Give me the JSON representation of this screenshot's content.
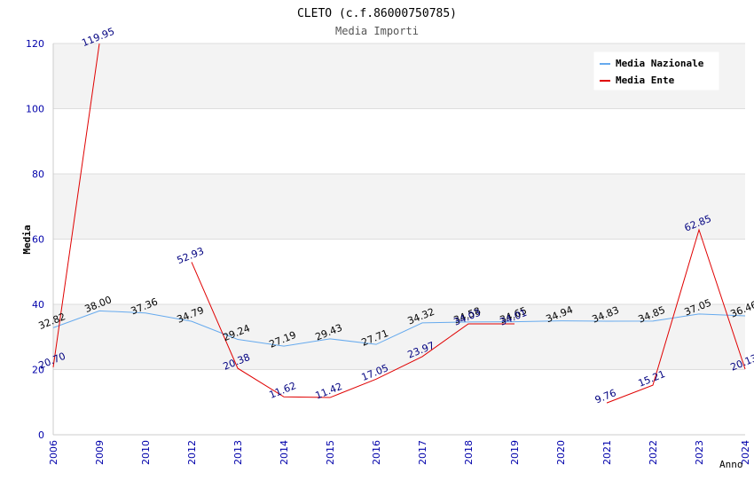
{
  "chart_data": {
    "type": "line",
    "title": "CLETO (c.f.86000750785)",
    "subtitle": "Media Importi",
    "xlabel": "Anno",
    "ylabel": "Media",
    "ylim": [
      0,
      120
    ],
    "yticks": [
      0,
      20,
      40,
      60,
      80,
      100,
      120
    ],
    "grid": true,
    "legend_position": "top-right",
    "categories": [
      "2006",
      "2009",
      "2010",
      "2012",
      "2013",
      "2014",
      "2015",
      "2016",
      "2017",
      "2018",
      "2019",
      "2020",
      "2021",
      "2022",
      "2023",
      "2024"
    ],
    "series": [
      {
        "name": "Media Nazionale",
        "color": "#66aaee",
        "label_color": "#000000",
        "values": [
          32.82,
          38.0,
          37.36,
          34.79,
          29.24,
          27.19,
          29.43,
          27.71,
          34.32,
          34.58,
          34.65,
          34.94,
          34.83,
          34.85,
          37.05,
          36.46
        ],
        "labels": [
          "32.82",
          "38.00",
          "37.36",
          "34.79",
          "29.24",
          "27.19",
          "29.43",
          "27.71",
          "34.32",
          "34.58",
          "34.65",
          "34.94",
          "34.83",
          "34.85",
          "37.05",
          "36.46"
        ]
      },
      {
        "name": "Media Ente",
        "color": "#e00000",
        "label_color": "#000080",
        "values": [
          20.7,
          119.95,
          null,
          52.93,
          20.38,
          11.62,
          11.42,
          17.05,
          23.97,
          34.03,
          34.01,
          null,
          9.76,
          15.21,
          62.85,
          20.13
        ],
        "labels": [
          "20.70",
          "119.95",
          "",
          "52.93",
          "20.38",
          "11.62",
          "11.42",
          "17.05",
          "23.97",
          "34.03",
          "34.01",
          "",
          "9.76",
          "15.21",
          "62.85",
          "20.13"
        ]
      }
    ]
  }
}
